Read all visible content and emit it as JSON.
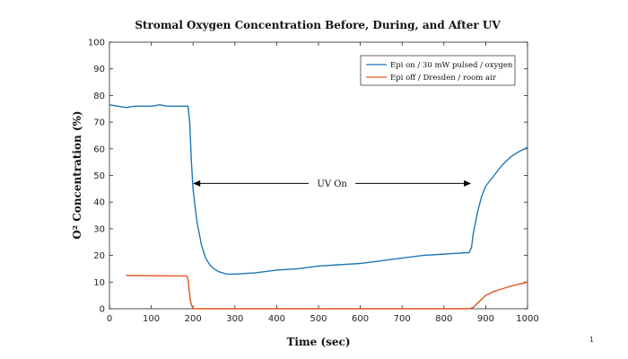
{
  "page_number": "1",
  "colors": {
    "series_1": "#1f77b4",
    "series_2": "#e2571f",
    "axis": "#262626",
    "annotation": "#000000"
  },
  "chart_data": {
    "type": "line",
    "title": "Stromal Oxygen Concentration Before, During, and After UV",
    "xlabel": "Time (sec)",
    "ylabel": "O² Concentration (%)",
    "xlim": [
      0,
      1000
    ],
    "ylim": [
      0,
      100
    ],
    "xticks": [
      0,
      100,
      200,
      300,
      400,
      500,
      600,
      700,
      800,
      900,
      1000
    ],
    "yticks": [
      0,
      10,
      20,
      30,
      40,
      50,
      60,
      70,
      80,
      90,
      100
    ],
    "grid": false,
    "legend_position": "top-right",
    "series": [
      {
        "name": "Epi on / 30 mW pulsed / oxygen",
        "color": "#1f77b4",
        "x": [
          0,
          20,
          40,
          60,
          80,
          100,
          120,
          140,
          160,
          180,
          188,
          192,
          196,
          200,
          205,
          210,
          215,
          220,
          230,
          240,
          250,
          260,
          270,
          280,
          290,
          300,
          350,
          400,
          450,
          500,
          550,
          600,
          650,
          700,
          750,
          800,
          850,
          860,
          866,
          870,
          875,
          880,
          890,
          900,
          920,
          940,
          960,
          980,
          1000
        ],
        "y": [
          76.5,
          76,
          75.5,
          76,
          76,
          76,
          76.5,
          76,
          76,
          76,
          76,
          70,
          55,
          45,
          38,
          32,
          28,
          24,
          19,
          16.5,
          15,
          14,
          13.5,
          13,
          13,
          13,
          13.5,
          14.5,
          15,
          16,
          16.5,
          17,
          18,
          19,
          20,
          20.5,
          21,
          21,
          23,
          28,
          32,
          36,
          42,
          46,
          50,
          54,
          57,
          59,
          60.5
        ]
      },
      {
        "name": "Epi off / Dresden / room air",
        "color": "#e2571f",
        "x": [
          40,
          100,
          150,
          185,
          188,
          190,
          192,
          194,
          196,
          198,
          200,
          205,
          300,
          400,
          500,
          600,
          700,
          800,
          860,
          870,
          880,
          890,
          900,
          920,
          940,
          960,
          980,
          1000
        ],
        "y": [
          12.5,
          12.4,
          12.3,
          12.3,
          11,
          8,
          5,
          3,
          1.5,
          0.7,
          0.2,
          0,
          0,
          0,
          0,
          0,
          0,
          0,
          0,
          0.5,
          2,
          3.5,
          5,
          6.5,
          7.5,
          8.5,
          9.2,
          10
        ]
      }
    ],
    "annotation": {
      "text": "UV On",
      "x_start": 200,
      "x_end": 865,
      "y": 47
    }
  }
}
